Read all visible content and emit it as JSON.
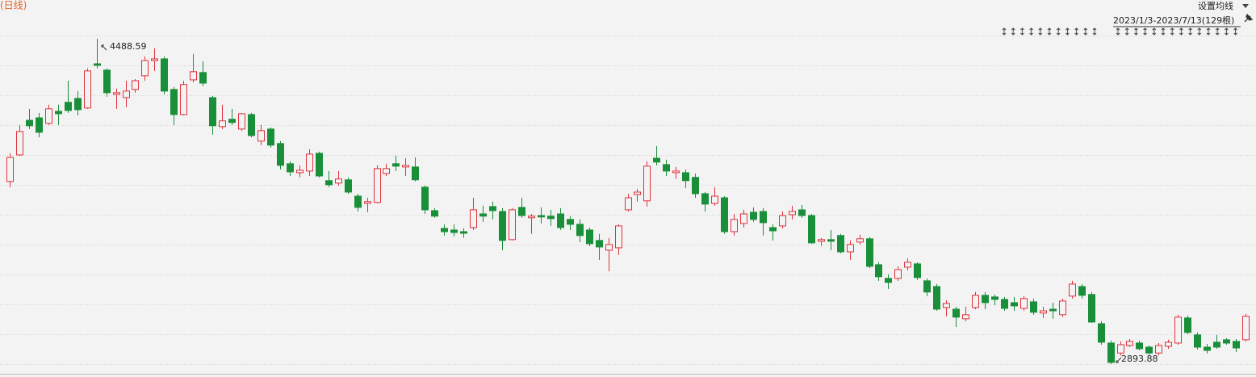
{
  "chart_data": {
    "type": "candlestick",
    "period_label": "(日线)",
    "ma_setting": "设置均线",
    "range_label": "2023/1/3-2023/7/13(129根)",
    "up_color": "#e0323b",
    "down_color": "#1a8f3a",
    "open": [
      3789,
      3919,
      4089,
      4101,
      4074,
      4133,
      4177,
      4196,
      4149,
      4366,
      4335,
      4216,
      4200,
      4240,
      4307,
      4382,
      4390,
      4240,
      4117,
      4287,
      4323,
      4200,
      4058,
      4094,
      4046,
      4117,
      3987,
      4046,
      3975,
      3876,
      3832,
      3840,
      3927,
      3793,
      3781,
      3797,
      3717,
      3682,
      3686,
      3828,
      3876,
      3860,
      3860,
      3761,
      3646,
      3559,
      3551,
      3543,
      3563,
      3630,
      3666,
      3642,
      3504,
      3662,
      3611,
      3622,
      3619,
      3630,
      3603,
      3579,
      3551,
      3500,
      3452,
      3464,
      3650,
      3725,
      3694,
      3903,
      3872,
      3832,
      3832,
      3809,
      3729,
      3682,
      3709,
      3543,
      3583,
      3638,
      3642,
      3563,
      3571,
      3626,
      3650,
      3622,
      3496,
      3504,
      3524,
      3444,
      3492,
      3508,
      3381,
      3314,
      3314,
      3369,
      3385,
      3302,
      3274,
      3171,
      3163,
      3116,
      3171,
      3231,
      3223,
      3211,
      3195,
      3167,
      3199,
      3144,
      3163,
      3136,
      3227,
      3274,
      3235,
      3092,
      2997,
      2948,
      2985,
      2997,
      2977,
      2948,
      2981,
      2997,
      3120,
      3037,
      2977,
      3001,
      3013,
      3005,
      3013
    ],
    "high": [
      3927,
      4066,
      4145,
      4125,
      4165,
      4165,
      4283,
      4232,
      4343,
      4488.59,
      4343,
      4244,
      4283,
      4291,
      4402,
      4442,
      4402,
      4252,
      4283,
      4414,
      4378,
      4208,
      4165,
      4145,
      4125,
      4125,
      4066,
      4054,
      3987,
      3888,
      3868,
      3947,
      3935,
      3840,
      3840,
      3809,
      3729,
      3709,
      3868,
      3876,
      3915,
      3903,
      3907,
      3769,
      3658,
      3579,
      3579,
      3559,
      3709,
      3670,
      3690,
      3658,
      3658,
      3709,
      3630,
      3662,
      3650,
      3658,
      3619,
      3603,
      3563,
      3532,
      3512,
      3579,
      3729,
      3753,
      3888,
      3963,
      3896,
      3860,
      3848,
      3828,
      3737,
      3761,
      3717,
      3630,
      3650,
      3662,
      3658,
      3579,
      3642,
      3670,
      3674,
      3630,
      3512,
      3551,
      3532,
      3500,
      3528,
      3516,
      3393,
      3334,
      3373,
      3413,
      3393,
      3314,
      3286,
      3207,
      3175,
      3175,
      3247,
      3247,
      3235,
      3223,
      3223,
      3227,
      3215,
      3175,
      3195,
      3215,
      3302,
      3286,
      3247,
      3104,
      3009,
      3005,
      3017,
      3009,
      2985,
      2997,
      3013,
      3136,
      3132,
      3049,
      2993,
      3037,
      3021,
      3017,
      3140
    ],
    "low": [
      3761,
      3915,
      4046,
      4006,
      4066,
      4066,
      4125,
      4113,
      4145,
      4343,
      4204,
      4145,
      4153,
      4224,
      4283,
      4331,
      4216,
      4066,
      4113,
      4275,
      4256,
      4018,
      4046,
      4066,
      4038,
      4006,
      3967,
      3955,
      3848,
      3816,
      3809,
      3816,
      3809,
      3761,
      3769,
      3729,
      3642,
      3638,
      3682,
      3816,
      3840,
      3816,
      3789,
      3630,
      3611,
      3524,
      3520,
      3512,
      3551,
      3591,
      3603,
      3452,
      3500,
      3611,
      3532,
      3583,
      3571,
      3551,
      3551,
      3492,
      3472,
      3405,
      3349,
      3429,
      3642,
      3690,
      3666,
      3868,
      3816,
      3801,
      3757,
      3709,
      3642,
      3670,
      3532,
      3524,
      3563,
      3591,
      3524,
      3500,
      3559,
      3603,
      3611,
      3484,
      3472,
      3452,
      3437,
      3405,
      3480,
      3365,
      3302,
      3262,
      3302,
      3353,
      3306,
      3227,
      3155,
      3128,
      3076,
      3104,
      3163,
      3163,
      3183,
      3155,
      3155,
      3155,
      3136,
      3120,
      3116,
      3124,
      3215,
      3215,
      3096,
      2989,
      2893.88,
      2936,
      2977,
      2961,
      2940,
      2936,
      2969,
      2989,
      3041,
      2965,
      2946,
      2969,
      2989,
      2953,
      3005
    ],
    "close": [
      3907,
      4034,
      4062,
      4030,
      4145,
      4121,
      4137,
      4141,
      4331,
      4358,
      4224,
      4224,
      4232,
      4283,
      4382,
      4390,
      4232,
      4117,
      4264,
      4327,
      4271,
      4062,
      4086,
      4078,
      4121,
      4014,
      4038,
      3967,
      3868,
      3836,
      3844,
      3923,
      3816,
      3773,
      3801,
      3737,
      3662,
      3690,
      3852,
      3852,
      3864,
      3868,
      3797,
      3650,
      3619,
      3543,
      3539,
      3535,
      3650,
      3619,
      3646,
      3500,
      3650,
      3622,
      3619,
      3615,
      3607,
      3563,
      3579,
      3524,
      3484,
      3468,
      3480,
      3571,
      3709,
      3737,
      3864,
      3884,
      3840,
      3840,
      3793,
      3729,
      3678,
      3717,
      3543,
      3603,
      3630,
      3603,
      3587,
      3547,
      3622,
      3642,
      3622,
      3488,
      3504,
      3496,
      3444,
      3480,
      3508,
      3373,
      3322,
      3294,
      3357,
      3393,
      3318,
      3247,
      3163,
      3191,
      3124,
      3136,
      3231,
      3195,
      3211,
      3167,
      3179,
      3215,
      3148,
      3155,
      3155,
      3203,
      3286,
      3231,
      3100,
      3001,
      2902,
      2989,
      3005,
      2969,
      2948,
      2985,
      3001,
      3124,
      3049,
      2977,
      2961,
      2977,
      2997,
      2973,
      3128
    ]
  }
}
